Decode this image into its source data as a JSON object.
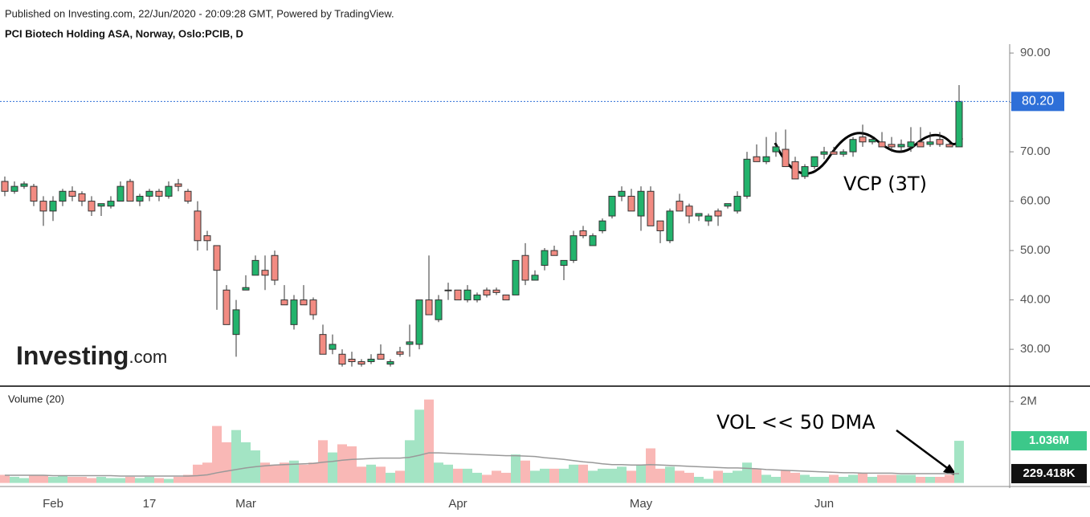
{
  "header": {
    "published": "Published on Investing.com, 22/Jun/2020 - 20:09:28 GMT, Powered by TradingView.",
    "logo": "Investing",
    "logo_suffix": ".com"
  },
  "chart_data": [
    {
      "type": "candlestick",
      "title": "PCI Biotech Holding ASA, Norway, Oslo:PCIB, D",
      "categories": [
        null,
        null,
        null,
        null,
        null,
        "Feb",
        null,
        null,
        null,
        null,
        null,
        null,
        null,
        null,
        null,
        "17",
        null,
        null,
        null,
        null,
        null,
        null,
        null,
        null,
        null,
        "Mar",
        null,
        null,
        null,
        null,
        null,
        null,
        null,
        null,
        null,
        null,
        null,
        null,
        null,
        null,
        null,
        null,
        null,
        null,
        null,
        null,
        null,
        "Apr",
        null,
        null,
        null,
        null,
        null,
        null,
        null,
        null,
        null,
        null,
        null,
        null,
        null,
        null,
        null,
        null,
        null,
        null,
        "May",
        null,
        null,
        null,
        null,
        null,
        null,
        null,
        null,
        null,
        null,
        null,
        null,
        null,
        null,
        null,
        null,
        null,
        null,
        "Jun",
        null,
        null,
        null,
        null,
        null,
        null,
        null,
        null,
        null,
        null,
        null,
        null,
        null,
        null
      ],
      "ohlc": [
        [
          64,
          65,
          61,
          62
        ],
        [
          62,
          64,
          61.5,
          63
        ],
        [
          63,
          64,
          62.5,
          63.5
        ],
        [
          63,
          63.5,
          59,
          60
        ],
        [
          60,
          61,
          55,
          58
        ],
        [
          58,
          61,
          56,
          60
        ],
        [
          60,
          62.5,
          59,
          62
        ],
        [
          62,
          63,
          60,
          61
        ],
        [
          61.5,
          62,
          59,
          60
        ],
        [
          60,
          61,
          57,
          58
        ],
        [
          59,
          59.5,
          57,
          59.5
        ],
        [
          59,
          61,
          58.5,
          60
        ],
        [
          60,
          64,
          60,
          63
        ],
        [
          64,
          64.5,
          60,
          60
        ],
        [
          60,
          61.5,
          59,
          61
        ],
        [
          61,
          62.5,
          60,
          62
        ],
        [
          62,
          62.5,
          60,
          61
        ],
        [
          61,
          64,
          60.5,
          63
        ],
        [
          63.5,
          64.5,
          62,
          63
        ],
        [
          62,
          62.5,
          59.5,
          60
        ],
        [
          58,
          60,
          50,
          52
        ],
        [
          53,
          54,
          50,
          52
        ],
        [
          51,
          51,
          38,
          46
        ],
        [
          42,
          43,
          35,
          35
        ],
        [
          33,
          40,
          28.5,
          38
        ],
        [
          42,
          45,
          42,
          42.5
        ],
        [
          45,
          49,
          45,
          48
        ],
        [
          46,
          49,
          42,
          45
        ],
        [
          49,
          50,
          43,
          44
        ],
        [
          40,
          43,
          39,
          39
        ],
        [
          35,
          41,
          34,
          40
        ],
        [
          40,
          43,
          39,
          39
        ],
        [
          40,
          40.5,
          36,
          37
        ],
        [
          33,
          35,
          29,
          29
        ],
        [
          30,
          33,
          29,
          31
        ],
        [
          29,
          30,
          26.5,
          27
        ],
        [
          28,
          29.5,
          26.5,
          27.5
        ],
        [
          27.5,
          28,
          26.5,
          27
        ],
        [
          27.5,
          29,
          27,
          28
        ],
        [
          29,
          31,
          28,
          28
        ],
        [
          27,
          28,
          26.5,
          27.5
        ],
        [
          29.5,
          30.5,
          28.5,
          29
        ],
        [
          31,
          35,
          28.5,
          31.5
        ],
        [
          31,
          40,
          30,
          40
        ],
        [
          40,
          49,
          37,
          37
        ],
        [
          36,
          41,
          35.5,
          40
        ],
        [
          42,
          43.5,
          40,
          42
        ],
        [
          42,
          42,
          40,
          40
        ],
        [
          40,
          43,
          39.5,
          42
        ],
        [
          40,
          41.5,
          39.5,
          41
        ],
        [
          42,
          42.5,
          40.5,
          41
        ],
        [
          42,
          42.5,
          41,
          41.5
        ],
        [
          41,
          41,
          40,
          40
        ],
        [
          41,
          48,
          41,
          48
        ],
        [
          49,
          51.5,
          43,
          44
        ],
        [
          44,
          46,
          44,
          45
        ],
        [
          47,
          50.5,
          46,
          50
        ],
        [
          50,
          51,
          49,
          49
        ],
        [
          47,
          48,
          44,
          48
        ],
        [
          48,
          54,
          47.5,
          53
        ],
        [
          54,
          55,
          52.5,
          53
        ],
        [
          51,
          53.5,
          51,
          53
        ],
        [
          54,
          56.5,
          53.5,
          56
        ],
        [
          57,
          61,
          56.5,
          61
        ],
        [
          61,
          63,
          60,
          62
        ],
        [
          61,
          62.5,
          58,
          58
        ],
        [
          57,
          63,
          54,
          62
        ],
        [
          62,
          63,
          55,
          55
        ],
        [
          56,
          56,
          51.5,
          54
        ],
        [
          52,
          58.5,
          51.5,
          58
        ],
        [
          60,
          61.5,
          58,
          58
        ],
        [
          59,
          59.5,
          55.5,
          57
        ],
        [
          57,
          57.5,
          56,
          57.5
        ],
        [
          56,
          57.5,
          55,
          57
        ],
        [
          58,
          58.5,
          55,
          57
        ],
        [
          59,
          59.5,
          58.5,
          59.5
        ],
        [
          58,
          62,
          57.5,
          61
        ],
        [
          61,
          70,
          60.5,
          68.5
        ],
        [
          69,
          71.5,
          68,
          68
        ],
        [
          68,
          73,
          67.5,
          69
        ],
        [
          70,
          74,
          69,
          71
        ],
        [
          70.5,
          74.5,
          67,
          67
        ],
        [
          68,
          69,
          64.5,
          64.5
        ],
        [
          65,
          67.5,
          64.5,
          67
        ],
        [
          67,
          69,
          66.5,
          69
        ],
        [
          69.5,
          71,
          68.5,
          70
        ],
        [
          70,
          71,
          69.5,
          69.5
        ],
        [
          69.5,
          70.5,
          69,
          70
        ],
        [
          70,
          73,
          69,
          72.5
        ],
        [
          73,
          75.5,
          71,
          72
        ],
        [
          72,
          73,
          71.5,
          72.5
        ],
        [
          72,
          74,
          71,
          71
        ],
        [
          71.5,
          73,
          70,
          71
        ],
        [
          71,
          72.5,
          70,
          71.5
        ],
        [
          71,
          75,
          70,
          72
        ],
        [
          72,
          75,
          71,
          71
        ],
        [
          71.5,
          74,
          71,
          72
        ],
        [
          72.5,
          74,
          71,
          71.5
        ],
        [
          71.5,
          72,
          71,
          71
        ],
        [
          71,
          83.5,
          71,
          80.2
        ]
      ],
      "up_color": "#22b36c",
      "down_color": "#f28b82",
      "outline_color": "#333333",
      "ylim": [
        22.7,
        91.8
      ],
      "yticks": [
        {
          "value": 30,
          "label": "30.00"
        },
        {
          "value": 40,
          "label": "40.00"
        },
        {
          "value": 50,
          "label": "50.00"
        },
        {
          "value": 60,
          "label": "60.00"
        },
        {
          "value": 70,
          "label": "70.00"
        },
        {
          "value": 80,
          "label": "80.00"
        },
        {
          "value": 90,
          "label": "90.00"
        }
      ],
      "last_price": {
        "value": 80.2,
        "label": "80.20"
      },
      "last_price_color": "#2e6fd8",
      "annotation": "VCP (3T)"
    },
    {
      "type": "bar",
      "title": "Volume (20)",
      "values": [
        0.2,
        0.15,
        0.12,
        0.18,
        0.2,
        0.15,
        0.18,
        0.15,
        0.15,
        0.12,
        0.15,
        0.12,
        0.12,
        0.15,
        0.12,
        0.15,
        0.12,
        0.1,
        0.15,
        0.2,
        0.45,
        0.5,
        1.4,
        1.0,
        1.3,
        1.0,
        0.8,
        0.5,
        0.45,
        0.5,
        0.55,
        0.45,
        0.5,
        1.05,
        0.75,
        0.95,
        0.9,
        0.4,
        0.45,
        0.4,
        0.25,
        0.3,
        1.05,
        1.8,
        2.05,
        0.5,
        0.45,
        0.35,
        0.35,
        0.25,
        0.2,
        0.3,
        0.25,
        0.7,
        0.55,
        0.3,
        0.35,
        0.35,
        0.35,
        0.45,
        0.45,
        0.3,
        0.35,
        0.35,
        0.4,
        0.3,
        0.45,
        0.85,
        0.35,
        0.4,
        0.3,
        0.25,
        0.15,
        0.1,
        0.3,
        0.25,
        0.3,
        0.5,
        0.35,
        0.2,
        0.15,
        0.3,
        0.25,
        0.2,
        0.15,
        0.15,
        0.2,
        0.15,
        0.2,
        0.25,
        0.15,
        0.2,
        0.2,
        0.2,
        0.2,
        0.15,
        0.15,
        0.15,
        0.2,
        1.036
      ],
      "ma_values": [
        0.19,
        0.19,
        0.19,
        0.19,
        0.19,
        0.18,
        0.18,
        0.18,
        0.18,
        0.18,
        0.18,
        0.18,
        0.17,
        0.17,
        0.17,
        0.17,
        0.17,
        0.17,
        0.17,
        0.17,
        0.18,
        0.2,
        0.25,
        0.29,
        0.33,
        0.37,
        0.4,
        0.42,
        0.44,
        0.45,
        0.46,
        0.47,
        0.48,
        0.51,
        0.53,
        0.56,
        0.58,
        0.59,
        0.6,
        0.61,
        0.61,
        0.61,
        0.63,
        0.68,
        0.74,
        0.74,
        0.73,
        0.72,
        0.71,
        0.7,
        0.69,
        0.68,
        0.67,
        0.67,
        0.66,
        0.65,
        0.62,
        0.6,
        0.58,
        0.55,
        0.52,
        0.5,
        0.47,
        0.45,
        0.45,
        0.44,
        0.44,
        0.45,
        0.44,
        0.43,
        0.42,
        0.41,
        0.4,
        0.39,
        0.38,
        0.37,
        0.37,
        0.36,
        0.35,
        0.33,
        0.32,
        0.31,
        0.3,
        0.29,
        0.28,
        0.27,
        0.26,
        0.25,
        0.25,
        0.24,
        0.24,
        0.24,
        0.24,
        0.23,
        0.23,
        0.23,
        0.23,
        0.23,
        0.23,
        0.229418
      ],
      "up_color": "#a3e4c4",
      "down_color": "#f9b8b6",
      "ma_color": "#999999",
      "ylim": [
        0,
        2.3
      ],
      "yticks": [
        {
          "value": 2,
          "label": "2M"
        }
      ],
      "last_volume": {
        "value": 1.036,
        "label": "1.036M"
      },
      "last_volume_color": "#3cc88a",
      "ma_last": {
        "value": 0.229418,
        "label": "229.418K"
      },
      "ma_last_color": "#111111",
      "annotation": "VOL << 50 DMA"
    }
  ]
}
